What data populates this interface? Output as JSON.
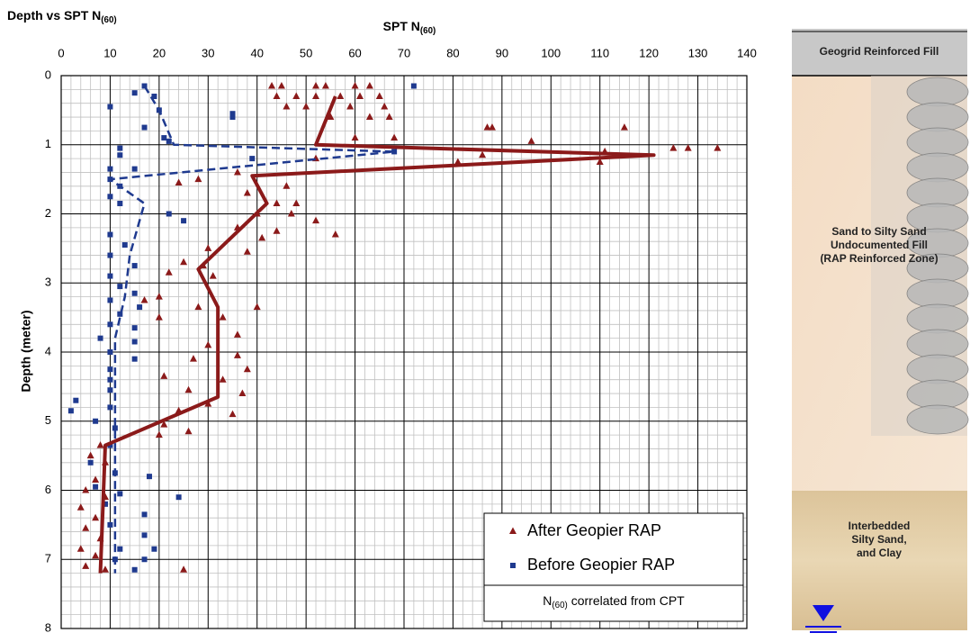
{
  "chart_data": {
    "type": "scatter",
    "title": {
      "main": "Depth vs SPT N",
      "sub": "(60)"
    },
    "x_label": {
      "main": "SPT N",
      "sub": "(60)"
    },
    "y_label": "Depth (meter)",
    "xlim": [
      0,
      140
    ],
    "xticks": [
      0,
      10,
      20,
      30,
      40,
      50,
      60,
      70,
      80,
      90,
      100,
      110,
      120,
      130,
      140
    ],
    "ylim": [
      0,
      8
    ],
    "yticks": [
      0,
      1,
      2,
      3,
      4,
      5,
      6,
      7,
      8
    ],
    "y_inverted": true,
    "grid": true,
    "legend_position": "lower right",
    "legend_note": {
      "main": "N",
      "sub": "(60)",
      "rest": " correlated from CPT"
    },
    "series": [
      {
        "name": "After Geopier RAP",
        "color": "#8b1a1a",
        "marker": "triangle",
        "x": [
          43,
          45,
          52,
          54,
          60,
          63,
          44,
          48,
          52,
          57,
          61,
          65,
          46,
          50,
          59,
          66,
          55,
          63,
          67,
          87,
          88,
          115,
          60,
          68,
          96,
          125,
          128,
          134,
          111,
          86,
          52,
          81,
          110,
          36,
          28,
          24,
          46,
          38,
          44,
          48,
          40,
          47,
          52,
          36,
          44,
          41,
          56,
          30,
          38,
          25,
          29,
          22,
          31,
          17,
          20,
          28,
          40,
          20,
          33,
          36,
          30,
          36,
          27,
          38,
          21,
          33,
          26,
          37,
          30,
          24,
          35,
          21,
          26,
          20,
          8,
          6,
          9,
          7,
          5,
          9,
          4,
          7,
          5,
          8,
          4,
          7,
          5,
          9,
          25
        ],
        "y": [
          0.15,
          0.15,
          0.15,
          0.15,
          0.15,
          0.15,
          0.3,
          0.3,
          0.3,
          0.3,
          0.3,
          0.3,
          0.45,
          0.45,
          0.45,
          0.45,
          0.6,
          0.6,
          0.6,
          0.75,
          0.75,
          0.75,
          0.9,
          0.9,
          0.95,
          1.05,
          1.05,
          1.05,
          1.1,
          1.15,
          1.2,
          1.25,
          1.25,
          1.4,
          1.5,
          1.55,
          1.6,
          1.7,
          1.85,
          1.85,
          2.0,
          2.0,
          2.1,
          2.2,
          2.25,
          2.35,
          2.3,
          2.5,
          2.55,
          2.7,
          2.75,
          2.85,
          2.9,
          3.25,
          3.2,
          3.35,
          3.35,
          3.5,
          3.5,
          3.75,
          3.9,
          4.05,
          4.1,
          4.25,
          4.35,
          4.4,
          4.55,
          4.6,
          4.75,
          4.85,
          4.9,
          5.05,
          5.15,
          5.2,
          5.35,
          5.5,
          5.6,
          5.85,
          6.0,
          6.1,
          6.25,
          6.4,
          6.55,
          6.7,
          6.85,
          6.95,
          7.1,
          7.15,
          7.15
        ]
      },
      {
        "name": "Before Geopier RAP",
        "color": "#1f3a8f",
        "marker": "square",
        "x": [
          72,
          17,
          15,
          19,
          10,
          20,
          35,
          35,
          17,
          21,
          22,
          68,
          12,
          12,
          39,
          10,
          15,
          10,
          12,
          10,
          12,
          22,
          25,
          10,
          13,
          10,
          15,
          10,
          12,
          15,
          10,
          16,
          12,
          10,
          15,
          8,
          15,
          10,
          15,
          10,
          10,
          10,
          3,
          2,
          10,
          7,
          11,
          10,
          6,
          11,
          18,
          7,
          12,
          24,
          9,
          17,
          10,
          17,
          12,
          19,
          11,
          15,
          17
        ],
        "y": [
          0.15,
          0.15,
          0.25,
          0.3,
          0.45,
          0.5,
          0.55,
          0.6,
          0.75,
          0.9,
          0.95,
          1.1,
          1.05,
          1.15,
          1.2,
          1.35,
          1.35,
          1.5,
          1.6,
          1.75,
          1.85,
          2.0,
          2.1,
          2.3,
          2.45,
          2.6,
          2.75,
          2.9,
          3.05,
          3.15,
          3.25,
          3.35,
          3.45,
          3.6,
          3.65,
          3.8,
          3.85,
          4.0,
          4.1,
          4.25,
          4.4,
          4.55,
          4.7,
          4.85,
          4.8,
          5.0,
          5.1,
          5.35,
          5.6,
          5.75,
          5.8,
          5.95,
          6.05,
          6.1,
          6.2,
          6.35,
          6.5,
          6.65,
          6.85,
          6.85,
          7.0,
          7.15,
          7.0
        ]
      }
    ],
    "trend_lines": [
      {
        "color": "#8b1a1a",
        "dashed": false,
        "x": [
          56,
          52,
          121,
          39,
          42,
          28,
          32,
          32,
          9,
          8
        ],
        "y": [
          0.3,
          1.0,
          1.15,
          1.45,
          1.85,
          2.8,
          3.35,
          4.65,
          5.35,
          7.2
        ]
      },
      {
        "color": "#1f3a8f",
        "dashed": true,
        "x": [
          17,
          20,
          23,
          68,
          10,
          17,
          14,
          13,
          11,
          11,
          11
        ],
        "y": [
          0.15,
          0.5,
          1.0,
          1.1,
          1.5,
          1.85,
          2.6,
          3.2,
          3.8,
          4.65,
          7.2
        ]
      }
    ]
  },
  "soil_profile": {
    "layers": [
      {
        "lines": [
          "Geogrid Reinforced Fill"
        ]
      },
      {
        "lines": [
          "Sand to Silty Sand",
          "Undocumented Fill",
          "(RAP Reinforced Zone)"
        ]
      },
      {
        "lines": [
          "Interbedded",
          "Silty Sand,",
          "and Clay"
        ]
      }
    ]
  }
}
